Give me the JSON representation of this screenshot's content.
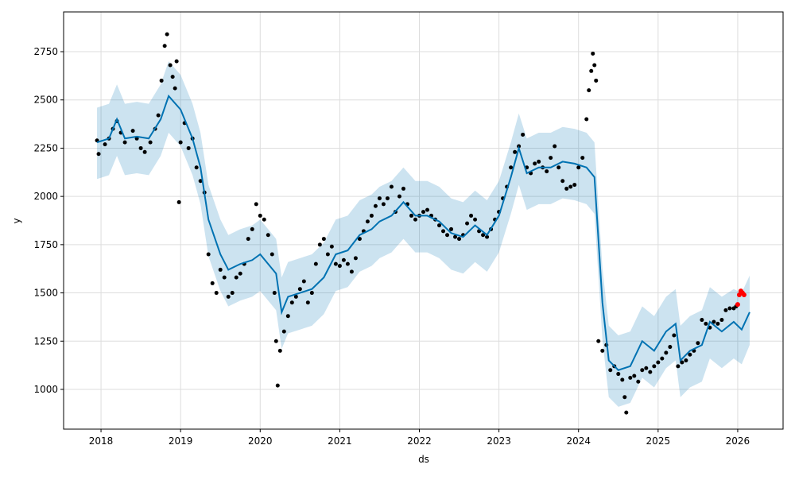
{
  "chart_data": {
    "type": "forecast",
    "xlabel": "ds",
    "ylabel": "y",
    "xlim": [
      2017.53,
      2026.57
    ],
    "xticks": [
      2018,
      2019,
      2020,
      2021,
      2022,
      2023,
      2024,
      2025,
      2026
    ],
    "ylim": [
      794,
      2956
    ],
    "yticks": [
      1000,
      1250,
      1500,
      1750,
      2000,
      2250,
      2500,
      2750
    ],
    "grid": true,
    "line_color": "#0072B2",
    "band_color": "#0072B2",
    "point_color": "#000000",
    "recent_color": "#ff0000",
    "x": [
      2017.95,
      2018.1,
      2018.2,
      2018.3,
      2018.45,
      2018.6,
      2018.75,
      2018.85,
      2019.0,
      2019.15,
      2019.25,
      2019.35,
      2019.5,
      2019.6,
      2019.75,
      2019.9,
      2020.0,
      2020.1,
      2020.2,
      2020.27,
      2020.35,
      2020.5,
      2020.65,
      2020.8,
      2020.95,
      2021.1,
      2021.25,
      2021.4,
      2021.5,
      2021.65,
      2021.8,
      2021.95,
      2022.1,
      2022.25,
      2022.4,
      2022.55,
      2022.7,
      2022.85,
      2023.0,
      2023.15,
      2023.25,
      2023.35,
      2023.5,
      2023.65,
      2023.8,
      2023.95,
      2024.1,
      2024.2,
      2024.3,
      2024.38,
      2024.5,
      2024.65,
      2024.8,
      2024.95,
      2025.1,
      2025.22,
      2025.28,
      2025.4,
      2025.55,
      2025.65,
      2025.8,
      2025.95,
      2026.05,
      2026.15
    ],
    "yhat": [
      2280,
      2300,
      2400,
      2300,
      2310,
      2300,
      2400,
      2520,
      2450,
      2300,
      2150,
      1880,
      1700,
      1620,
      1650,
      1670,
      1700,
      1650,
      1600,
      1400,
      1480,
      1500,
      1520,
      1580,
      1700,
      1720,
      1800,
      1830,
      1870,
      1900,
      1970,
      1900,
      1900,
      1870,
      1810,
      1790,
      1850,
      1800,
      1900,
      2100,
      2250,
      2120,
      2150,
      2150,
      2180,
      2170,
      2150,
      2100,
      1450,
      1150,
      1100,
      1120,
      1250,
      1200,
      1300,
      1340,
      1150,
      1200,
      1230,
      1350,
      1300,
      1350,
      1310,
      1400
    ],
    "yhat_upper": [
      2460,
      2480,
      2580,
      2480,
      2490,
      2480,
      2580,
      2700,
      2630,
      2480,
      2330,
      2060,
      1880,
      1800,
      1830,
      1850,
      1880,
      1830,
      1780,
      1580,
      1660,
      1680,
      1700,
      1760,
      1880,
      1900,
      1980,
      2010,
      2050,
      2080,
      2150,
      2080,
      2080,
      2050,
      1990,
      1970,
      2030,
      1980,
      2080,
      2280,
      2430,
      2300,
      2330,
      2330,
      2360,
      2350,
      2330,
      2280,
      1630,
      1330,
      1280,
      1300,
      1430,
      1380,
      1480,
      1520,
      1330,
      1380,
      1410,
      1530,
      1480,
      1520,
      1500,
      1590
    ],
    "yhat_lower": [
      2090,
      2110,
      2210,
      2110,
      2120,
      2110,
      2210,
      2330,
      2260,
      2110,
      1960,
      1690,
      1510,
      1430,
      1460,
      1480,
      1510,
      1460,
      1410,
      1210,
      1290,
      1310,
      1330,
      1390,
      1510,
      1530,
      1610,
      1640,
      1680,
      1710,
      1780,
      1710,
      1710,
      1680,
      1620,
      1600,
      1660,
      1610,
      1710,
      1910,
      2060,
      1930,
      1960,
      1960,
      1990,
      1980,
      1960,
      1910,
      1260,
      960,
      910,
      930,
      1060,
      1010,
      1110,
      1150,
      960,
      1010,
      1040,
      1160,
      1110,
      1160,
      1130,
      1230
    ],
    "points": {
      "x": [
        2017.95,
        2017.97,
        2018.05,
        2018.1,
        2018.15,
        2018.2,
        2018.25,
        2018.3,
        2018.4,
        2018.45,
        2018.5,
        2018.55,
        2018.62,
        2018.68,
        2018.72,
        2018.76,
        2018.8,
        2018.83,
        2018.87,
        2018.9,
        2018.93,
        2018.95,
        2018.98,
        2019.0,
        2019.05,
        2019.1,
        2019.15,
        2019.2,
        2019.25,
        2019.3,
        2019.35,
        2019.4,
        2019.45,
        2019.5,
        2019.55,
        2019.6,
        2019.65,
        2019.7,
        2019.75,
        2019.8,
        2019.85,
        2019.9,
        2019.95,
        2020.0,
        2020.05,
        2020.1,
        2020.15,
        2020.18,
        2020.2,
        2020.22,
        2020.25,
        2020.3,
        2020.35,
        2020.4,
        2020.45,
        2020.5,
        2020.55,
        2020.6,
        2020.65,
        2020.7,
        2020.75,
        2020.8,
        2020.85,
        2020.9,
        2020.95,
        2021.0,
        2021.05,
        2021.1,
        2021.15,
        2021.2,
        2021.25,
        2021.3,
        2021.35,
        2021.4,
        2021.45,
        2021.5,
        2021.55,
        2021.6,
        2021.65,
        2021.7,
        2021.75,
        2021.8,
        2021.85,
        2021.9,
        2021.95,
        2022.0,
        2022.05,
        2022.1,
        2022.15,
        2022.2,
        2022.25,
        2022.3,
        2022.35,
        2022.4,
        2022.45,
        2022.5,
        2022.55,
        2022.6,
        2022.65,
        2022.7,
        2022.75,
        2022.8,
        2022.85,
        2022.9,
        2022.95,
        2023.0,
        2023.05,
        2023.1,
        2023.15,
        2023.2,
        2023.25,
        2023.3,
        2023.35,
        2023.4,
        2023.45,
        2023.5,
        2023.55,
        2023.6,
        2023.65,
        2023.7,
        2023.75,
        2023.8,
        2023.85,
        2023.9,
        2023.95,
        2024.0,
        2024.05,
        2024.1,
        2024.13,
        2024.16,
        2024.18,
        2024.2,
        2024.22,
        2024.25,
        2024.3,
        2024.35,
        2024.4,
        2024.45,
        2024.5,
        2024.55,
        2024.58,
        2024.6,
        2024.65,
        2024.7,
        2024.75,
        2024.8,
        2024.85,
        2024.9,
        2024.95,
        2025.0,
        2025.05,
        2025.1,
        2025.15,
        2025.2,
        2025.25,
        2025.3,
        2025.35,
        2025.4,
        2025.45,
        2025.5,
        2025.55,
        2025.6,
        2025.65,
        2025.7,
        2025.75,
        2025.8,
        2025.85,
        2025.9,
        2025.95,
        2025.98
      ],
      "values": [
        2290,
        2220,
        2270,
        2300,
        2350,
        2390,
        2330,
        2280,
        2340,
        2300,
        2250,
        2230,
        2280,
        2350,
        2420,
        2600,
        2780,
        2840,
        2680,
        2620,
        2560,
        2700,
        1970,
        2280,
        2380,
        2250,
        2300,
        2150,
        2080,
        2020,
        1700,
        1550,
        1500,
        1620,
        1580,
        1480,
        1500,
        1580,
        1600,
        1650,
        1780,
        1830,
        1960,
        1900,
        1880,
        1800,
        1700,
        1500,
        1250,
        1020,
        1200,
        1300,
        1380,
        1450,
        1480,
        1520,
        1560,
        1450,
        1500,
        1650,
        1750,
        1780,
        1700,
        1740,
        1650,
        1640,
        1670,
        1650,
        1610,
        1680,
        1780,
        1820,
        1870,
        1900,
        1950,
        1990,
        1960,
        1990,
        2050,
        1920,
        2000,
        2040,
        1960,
        1900,
        1880,
        1900,
        1920,
        1930,
        1900,
        1880,
        1850,
        1820,
        1800,
        1830,
        1790,
        1780,
        1800,
        1860,
        1900,
        1880,
        1820,
        1800,
        1790,
        1830,
        1880,
        1920,
        1990,
        2050,
        2150,
        2230,
        2260,
        2320,
        2150,
        2120,
        2170,
        2180,
        2150,
        2130,
        2200,
        2260,
        2150,
        2080,
        2040,
        2050,
        2060,
        2150,
        2200,
        2400,
        2550,
        2650,
        2740,
        2680,
        2600,
        1250,
        1200,
        1230,
        1100,
        1120,
        1080,
        1050,
        960,
        880,
        1060,
        1070,
        1040,
        1100,
        1110,
        1090,
        1120,
        1140,
        1160,
        1190,
        1220,
        1280,
        1120,
        1140,
        1150,
        1180,
        1200,
        1240,
        1360,
        1340,
        1320,
        1350,
        1340,
        1360,
        1410,
        1420,
        1420,
        1430
      ]
    },
    "recent_points": {
      "x": [
        2026.0,
        2026.02,
        2026.04,
        2026.06,
        2026.08
      ],
      "values": [
        1440,
        1490,
        1510,
        1500,
        1490
      ]
    }
  }
}
